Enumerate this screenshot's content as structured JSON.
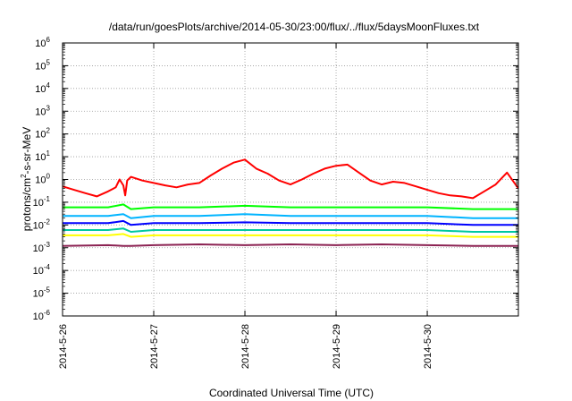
{
  "chart_data": {
    "type": "line",
    "title": "/data/run/goesPlots/archive/2014-05-30/23:00/flux/../flux/5daysMoonFluxes.txt",
    "xlabel": "Coordinated Universal Time (UTC)",
    "ylabel_parts": [
      "protons/cm",
      "2",
      "-s-sr-MeV"
    ],
    "y_scale": "log",
    "ylim": [
      1e-06,
      1000000.0
    ],
    "y_ticks": [
      {
        "value": 1e-06,
        "base": "10",
        "exp": "-6"
      },
      {
        "value": 1e-05,
        "base": "10",
        "exp": "-5"
      },
      {
        "value": 0.0001,
        "base": "10",
        "exp": "-4"
      },
      {
        "value": 0.001,
        "base": "10",
        "exp": "-3"
      },
      {
        "value": 0.01,
        "base": "10",
        "exp": "-2"
      },
      {
        "value": 0.1,
        "base": "10",
        "exp": "-1"
      },
      {
        "value": 1,
        "base": "10",
        "exp": "0"
      },
      {
        "value": 10,
        "base": "10",
        "exp": "1"
      },
      {
        "value": 100,
        "base": "10",
        "exp": "2"
      },
      {
        "value": 1000,
        "base": "10",
        "exp": "3"
      },
      {
        "value": 10000,
        "base": "10",
        "exp": "4"
      },
      {
        "value": 100000,
        "base": "10",
        "exp": "5"
      },
      {
        "value": 1000000,
        "base": "10",
        "exp": "6"
      }
    ],
    "x_range": [
      "2014-05-26 00:00",
      "2014-05-30 23:59"
    ],
    "x_ticks": [
      "2014-5-26",
      "2014-5-27",
      "2014-5-28",
      "2014-5-29",
      "2014-5-30"
    ],
    "grid": true,
    "series": [
      {
        "color": "#ff0000",
        "x": [
          "2014-05-26 00:00",
          "2014-05-26 03:00",
          "2014-05-26 06:00",
          "2014-05-26 09:00",
          "2014-05-26 12:00",
          "2014-05-26 14:00",
          "2014-05-26 15:00",
          "2014-05-26 16:00",
          "2014-05-26 16:30",
          "2014-05-26 17:00",
          "2014-05-26 18:00",
          "2014-05-26 21:00",
          "2014-05-27 00:00",
          "2014-05-27 03:00",
          "2014-05-27 06:00",
          "2014-05-27 09:00",
          "2014-05-27 12:00",
          "2014-05-27 15:00",
          "2014-05-27 18:00",
          "2014-05-27 21:00",
          "2014-05-28 00:00",
          "2014-05-28 03:00",
          "2014-05-28 06:00",
          "2014-05-28 09:00",
          "2014-05-28 12:00",
          "2014-05-28 15:00",
          "2014-05-28 18:00",
          "2014-05-28 21:00",
          "2014-05-29 00:00",
          "2014-05-29 03:00",
          "2014-05-29 06:00",
          "2014-05-29 09:00",
          "2014-05-29 12:00",
          "2014-05-29 15:00",
          "2014-05-29 18:00",
          "2014-05-29 21:00",
          "2014-05-30 00:00",
          "2014-05-30 03:00",
          "2014-05-30 06:00",
          "2014-05-30 09:00",
          "2014-05-30 12:00",
          "2014-05-30 15:00",
          "2014-05-30 18:00",
          "2014-05-30 21:00",
          "2014-05-30 23:59"
        ],
        "y": [
          0.5,
          0.35,
          0.25,
          0.18,
          0.3,
          0.45,
          1.0,
          0.55,
          0.2,
          0.9,
          1.3,
          0.9,
          0.7,
          0.55,
          0.45,
          0.6,
          0.7,
          1.5,
          3.0,
          5.5,
          7.5,
          3.0,
          1.8,
          0.9,
          0.6,
          1.0,
          1.8,
          3.0,
          4.0,
          4.5,
          2.0,
          0.9,
          0.6,
          0.8,
          0.7,
          0.5,
          0.35,
          0.25,
          0.2,
          0.18,
          0.15,
          0.3,
          0.6,
          2.0,
          0.4
        ]
      },
      {
        "color": "#00ff00",
        "x": [
          "2014-05-26 00:00",
          "2014-05-26 12:00",
          "2014-05-26 16:00",
          "2014-05-26 18:00",
          "2014-05-27 00:00",
          "2014-05-27 12:00",
          "2014-05-28 00:00",
          "2014-05-28 12:00",
          "2014-05-29 00:00",
          "2014-05-29 12:00",
          "2014-05-30 00:00",
          "2014-05-30 12:00",
          "2014-05-30 23:59"
        ],
        "y": [
          0.06,
          0.06,
          0.08,
          0.05,
          0.06,
          0.06,
          0.07,
          0.06,
          0.06,
          0.06,
          0.06,
          0.05,
          0.05
        ]
      },
      {
        "color": "#00b4ff",
        "x": [
          "2014-05-26 00:00",
          "2014-05-26 12:00",
          "2014-05-26 16:00",
          "2014-05-26 18:00",
          "2014-05-27 00:00",
          "2014-05-27 12:00",
          "2014-05-28 00:00",
          "2014-05-28 12:00",
          "2014-05-29 00:00",
          "2014-05-29 12:00",
          "2014-05-30 00:00",
          "2014-05-30 12:00",
          "2014-05-30 23:59"
        ],
        "y": [
          0.025,
          0.025,
          0.03,
          0.02,
          0.025,
          0.025,
          0.03,
          0.025,
          0.025,
          0.025,
          0.025,
          0.02,
          0.02
        ]
      },
      {
        "color": "#0000ff",
        "x": [
          "2014-05-26 00:00",
          "2014-05-26 12:00",
          "2014-05-26 16:00",
          "2014-05-26 18:00",
          "2014-05-27 00:00",
          "2014-05-27 12:00",
          "2014-05-28 00:00",
          "2014-05-28 12:00",
          "2014-05-29 00:00",
          "2014-05-29 12:00",
          "2014-05-30 00:00",
          "2014-05-30 12:00",
          "2014-05-30 23:59"
        ],
        "y": [
          0.012,
          0.012,
          0.015,
          0.01,
          0.012,
          0.012,
          0.013,
          0.012,
          0.012,
          0.012,
          0.012,
          0.01,
          0.01
        ]
      },
      {
        "color": "#00c8a0",
        "x": [
          "2014-05-26 00:00",
          "2014-05-26 12:00",
          "2014-05-26 16:00",
          "2014-05-26 18:00",
          "2014-05-27 00:00",
          "2014-05-27 12:00",
          "2014-05-28 00:00",
          "2014-05-28 12:00",
          "2014-05-29 00:00",
          "2014-05-29 12:00",
          "2014-05-30 00:00",
          "2014-05-30 12:00",
          "2014-05-30 23:59"
        ],
        "y": [
          0.006,
          0.006,
          0.007,
          0.005,
          0.006,
          0.006,
          0.006,
          0.006,
          0.006,
          0.006,
          0.006,
          0.005,
          0.005
        ]
      },
      {
        "color": "#ffff00",
        "x": [
          "2014-05-26 00:00",
          "2014-05-26 12:00",
          "2014-05-26 16:00",
          "2014-05-26 18:00",
          "2014-05-27 00:00",
          "2014-05-27 12:00",
          "2014-05-28 00:00",
          "2014-05-28 12:00",
          "2014-05-29 00:00",
          "2014-05-29 12:00",
          "2014-05-30 00:00",
          "2014-05-30 12:00",
          "2014-05-30 23:59"
        ],
        "y": [
          0.0035,
          0.0035,
          0.004,
          0.003,
          0.0035,
          0.0035,
          0.0035,
          0.0035,
          0.0035,
          0.0035,
          0.0035,
          0.003,
          0.003
        ]
      },
      {
        "color": "#8b2252",
        "x": [
          "2014-05-26 00:00",
          "2014-05-26 12:00",
          "2014-05-26 16:00",
          "2014-05-26 18:00",
          "2014-05-27 00:00",
          "2014-05-27 12:00",
          "2014-05-28 00:00",
          "2014-05-28 12:00",
          "2014-05-29 00:00",
          "2014-05-29 12:00",
          "2014-05-30 00:00",
          "2014-05-30 12:00",
          "2014-05-30 23:59"
        ],
        "y": [
          0.0012,
          0.0013,
          0.0012,
          0.0012,
          0.0013,
          0.0014,
          0.0013,
          0.0014,
          0.0013,
          0.0014,
          0.0013,
          0.0012,
          0.0012
        ]
      }
    ]
  }
}
